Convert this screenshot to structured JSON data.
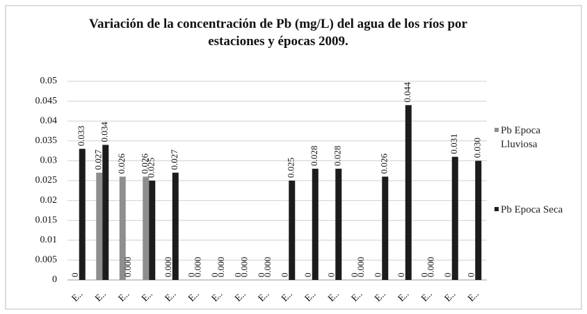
{
  "chart_data": {
    "type": "bar",
    "title": "Variación de la concentración de Pb (mg/L) del agua de los ríos por estaciones y épocas 2009.",
    "categories": [
      "E..",
      "E..",
      "E..",
      "E..",
      "E..",
      "E..",
      "E..",
      "E..",
      "E..",
      "E..",
      "E..",
      "E..",
      "E..",
      "E..",
      "E..",
      "E..",
      "E..",
      "E.."
    ],
    "series": [
      {
        "name": "Pb  Epoca Lluviosa",
        "color": "#8e8e8e",
        "values": [
          0,
          0.027,
          0.026,
          0.026,
          0,
          0,
          0,
          0,
          0,
          0,
          0,
          0,
          0,
          0,
          0,
          0,
          0,
          0
        ],
        "value_labels": [
          "0",
          "0.027",
          "0.026",
          "0.026",
          "0.000",
          "0",
          "0",
          "0",
          "0",
          "0",
          "0",
          "0",
          "0",
          "0",
          "0",
          "0",
          "0",
          "0"
        ]
      },
      {
        "name": "Pb Epoca Seca",
        "color": "#1c1c1c",
        "values": [
          0.033,
          0.034,
          0,
          0.025,
          0.027,
          0,
          0,
          0,
          0,
          0.025,
          0.028,
          0.028,
          0,
          0.026,
          0.044,
          0,
          0.031,
          0.03
        ],
        "value_labels": [
          "0.033",
          "0.034",
          "0.000",
          "0.025",
          "0.027",
          "0.000",
          "0.000",
          "0.000",
          "0.000",
          "0.025",
          "0.028",
          "0.028",
          "0.000",
          "0.026",
          "0.044",
          "0.000",
          "0.031",
          "0.030"
        ]
      }
    ],
    "ylim": [
      0,
      0.05
    ],
    "yticks": [
      0,
      0.005,
      0.01,
      0.015,
      0.02,
      0.025,
      0.03,
      0.035,
      0.04,
      0.045,
      0.05
    ],
    "grid": true,
    "legend": "right"
  }
}
